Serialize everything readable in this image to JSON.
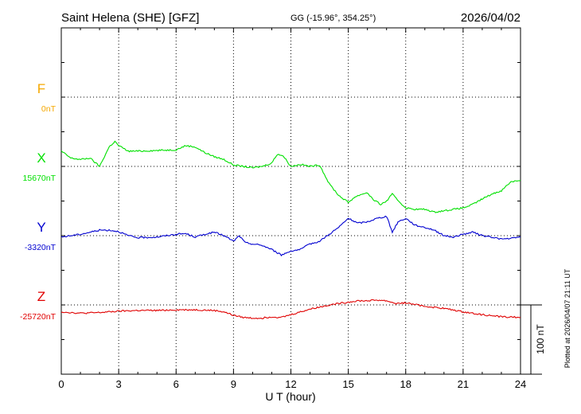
{
  "header": {
    "station": "Saint Helena (SHE)  [GFZ]",
    "coords": "GG (-15.96°, 354.25°)",
    "date": "2026/04/02"
  },
  "footer": {
    "plotted": "Plotted at 2026/04/07 21:11 UT",
    "scale_label": "100 nT"
  },
  "chart_data": {
    "type": "line",
    "title": "Saint Helena (SHE)  [GFZ]",
    "xlabel": "U T (hour)",
    "ylabel": "",
    "xlim": [
      0,
      24
    ],
    "x_ticks": [
      "0",
      "3",
      "6",
      "9",
      "12",
      "15",
      "18",
      "21",
      "24"
    ],
    "grid": true,
    "scale_bar_nT": 100,
    "colors": {
      "F": "#f5a800",
      "X": "#00e000",
      "Y": "#0000d0",
      "Z": "#e00000"
    },
    "panels": [
      {
        "name": "F",
        "baseline_label": "0nT",
        "baseline_nT": 0,
        "x": [],
        "values": []
      },
      {
        "name": "X",
        "baseline_label": "15670nT",
        "baseline_nT": 15670,
        "x": [
          0,
          0.5,
          1,
          1.5,
          2,
          2.5,
          2.8,
          3,
          3.5,
          4,
          5,
          6,
          6.5,
          7,
          7.5,
          8,
          8.5,
          9,
          9.5,
          10,
          10.5,
          11,
          11.3,
          11.6,
          12,
          12.5,
          13,
          13.5,
          14,
          14.5,
          15,
          15.3,
          15.7,
          16,
          16.3,
          16.7,
          17,
          17.3,
          17.7,
          18,
          18.5,
          19,
          19.5,
          20,
          20.5,
          21,
          21.5,
          22,
          22.5,
          23,
          23.5,
          24
        ],
        "values": [
          22,
          12,
          10,
          12,
          0,
          28,
          36,
          30,
          22,
          22,
          23,
          24,
          30,
          28,
          20,
          14,
          10,
          2,
          0,
          -2,
          0,
          5,
          18,
          15,
          0,
          3,
          0,
          2,
          -25,
          -42,
          -52,
          -45,
          -40,
          -38,
          -48,
          -55,
          -50,
          -40,
          -52,
          -60,
          -62,
          -62,
          -66,
          -64,
          -62,
          -60,
          -55,
          -47,
          -40,
          -35,
          -22,
          -20
        ]
      },
      {
        "name": "Y",
        "baseline_label": "-3320nT",
        "baseline_nT": -3320,
        "x": [
          0,
          0.5,
          1,
          1.5,
          2,
          2.5,
          3,
          3.5,
          4,
          5,
          6,
          6.5,
          7,
          7.5,
          8,
          8.5,
          9,
          9.3,
          9.6,
          10,
          10.5,
          11,
          11.5,
          12,
          12.5,
          13,
          13.5,
          14,
          14.5,
          15,
          15.5,
          16,
          16.5,
          17,
          17.3,
          17.6,
          18,
          18.5,
          19,
          19.5,
          20,
          20.5,
          21,
          21.5,
          22,
          22.5,
          23,
          23.5,
          24
        ],
        "values": [
          -2,
          0,
          2,
          5,
          8,
          8,
          6,
          0,
          -3,
          -2,
          2,
          3,
          -2,
          2,
          5,
          0,
          -8,
          0,
          -10,
          -12,
          -14,
          -20,
          -28,
          -22,
          -20,
          -12,
          -8,
          2,
          12,
          25,
          18,
          20,
          25,
          28,
          5,
          20,
          25,
          15,
          12,
          8,
          0,
          -2,
          2,
          5,
          0,
          -2,
          -5,
          -4,
          -2
        ]
      },
      {
        "name": "Z",
        "baseline_label": "-25720nT",
        "baseline_nT": -25720,
        "x": [
          0,
          1,
          2,
          3,
          4,
          5,
          6,
          7,
          8,
          8.5,
          9,
          9.5,
          10,
          10.5,
          11,
          11.5,
          12,
          13,
          14,
          15,
          15.5,
          16,
          16.5,
          17,
          17.5,
          18,
          19,
          20,
          21,
          22,
          23,
          24
        ],
        "values": [
          -10,
          -12,
          -11,
          -9,
          -8,
          -8,
          -7,
          -7,
          -8,
          -10,
          -15,
          -18,
          -19,
          -19,
          -17,
          -18,
          -14,
          -6,
          0,
          4,
          6,
          6,
          7,
          6,
          2,
          3,
          -2,
          -5,
          -10,
          -14,
          -17,
          -18
        ]
      }
    ]
  }
}
